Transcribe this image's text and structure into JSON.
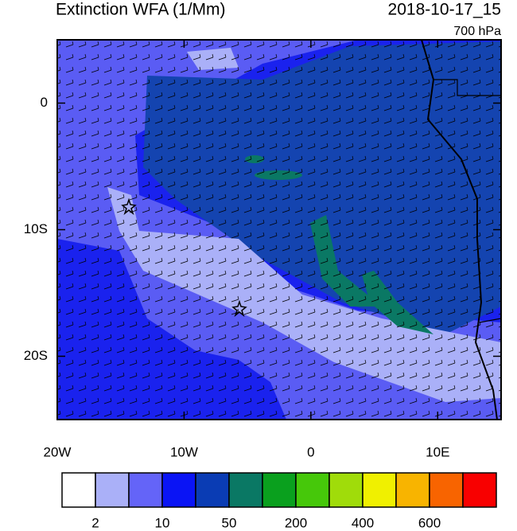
{
  "map": {
    "title": "Extinction WFA (1/Mm)",
    "valid_time": "2018-10-17_15",
    "level": "700 hPa",
    "lonlim": [
      -20,
      15
    ],
    "latlim": [
      -25,
      5
    ],
    "lon_ticks": [
      {
        "value": -20,
        "label": "20W"
      },
      {
        "value": -10,
        "label": "10W"
      },
      0,
      {
        "value": 10,
        "label": "10E"
      }
    ],
    "lat_ticks": [
      0,
      {
        "value": -10,
        "label": "10S"
      },
      {
        "value": -20,
        "label": "20S"
      }
    ],
    "colorbar": {
      "colors": [
        "#ffffff",
        "#aab0f8",
        "#6464f8",
        "#0a14f5",
        "#0a3cb4",
        "#0a7864",
        "#0aa01e",
        "#46c80a",
        "#a0dc0a",
        "#f0f000",
        "#f8b400",
        "#f86400",
        "#f80000"
      ],
      "ticks": [
        2,
        10,
        50,
        200,
        400,
        600
      ]
    }
  }
}
